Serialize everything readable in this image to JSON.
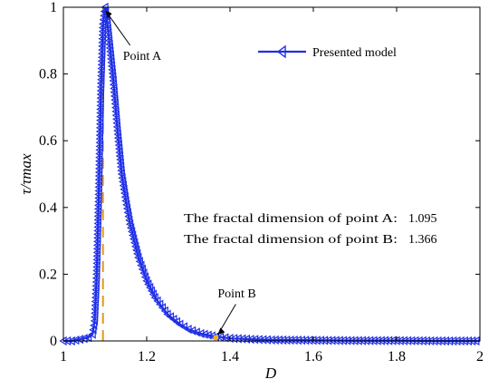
{
  "chart_data": {
    "type": "line",
    "xlabel": "D",
    "ylabel": "τ/τmax",
    "xlim": [
      1,
      2
    ],
    "ylim": [
      0,
      1
    ],
    "x_ticks": [
      "1",
      "1.2",
      "1.4",
      "1.6",
      "1.8",
      "2"
    ],
    "y_ticks": [
      "0",
      "0.2",
      "0.4",
      "0.6",
      "0.8",
      "1"
    ],
    "grid": false,
    "legend_position": "top-right",
    "series": [
      {
        "name": "Presented model",
        "color": "#1f2fe6",
        "marker": "left-triangle",
        "x": [
          1.0,
          1.02,
          1.04,
          1.06,
          1.07,
          1.075,
          1.08,
          1.085,
          1.09,
          1.095,
          1.1,
          1.105,
          1.11,
          1.12,
          1.13,
          1.14,
          1.15,
          1.16,
          1.18,
          1.2,
          1.22,
          1.25,
          1.28,
          1.3,
          1.33,
          1.366,
          1.4,
          1.45,
          1.5,
          1.6,
          1.7,
          1.8,
          1.9,
          2.0
        ],
        "y": [
          0.0,
          0.0,
          0.005,
          0.01,
          0.02,
          0.06,
          0.2,
          0.45,
          0.75,
          0.95,
          1.0,
          0.96,
          0.9,
          0.78,
          0.63,
          0.5,
          0.42,
          0.35,
          0.25,
          0.18,
          0.13,
          0.08,
          0.05,
          0.035,
          0.022,
          0.013,
          0.008,
          0.005,
          0.003,
          0.002,
          0.001,
          0.001,
          0.0,
          0.0
        ]
      }
    ],
    "reference_line": {
      "x": 1.095,
      "color": "#e09a1a",
      "style": "dashed"
    },
    "annotations": [
      {
        "text": "Point A",
        "x": 1.095,
        "y": 1.0
      },
      {
        "text": "Point B",
        "x": 1.366,
        "y": 0.01
      }
    ],
    "point_b_marker_color": "#f0b020",
    "info_lines": [
      {
        "label": "The fractal dimension of point A:",
        "value": "1.095"
      },
      {
        "label": "The fractal dimension of point B:",
        "value": "1.366"
      }
    ]
  }
}
